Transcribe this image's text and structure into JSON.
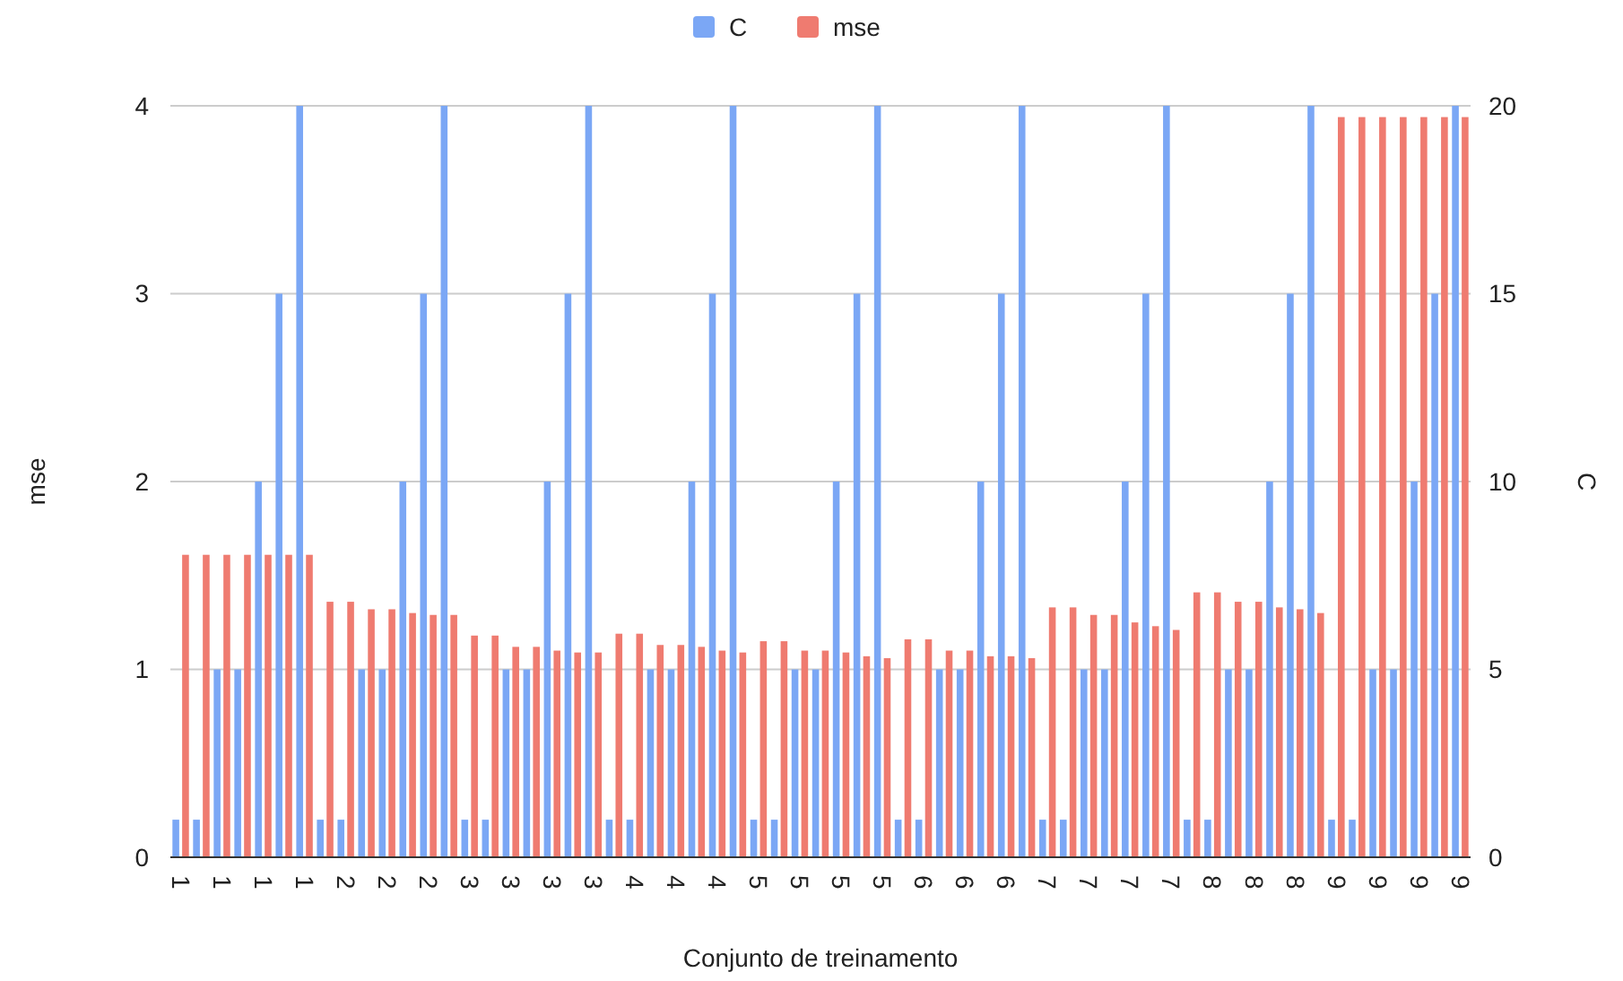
{
  "chart_data": {
    "type": "bar",
    "xlabel": "Conjunto de treinamento",
    "ylabel": "mse",
    "y2label": "C",
    "categories": [
      "1",
      null,
      "1",
      null,
      "1",
      null,
      "1",
      null,
      "2",
      null,
      "2",
      null,
      "2",
      null,
      "3",
      null,
      "3",
      null,
      "3",
      null,
      "3",
      null,
      "4",
      null,
      "4",
      null,
      "4",
      null,
      "5",
      null,
      "5",
      null,
      "5",
      null,
      "5",
      null,
      "6",
      null,
      "6",
      null,
      "6",
      null,
      "7",
      null,
      "7",
      null,
      "7",
      null,
      "7",
      null,
      "8",
      null,
      "8",
      null,
      "8",
      null,
      "9",
      null,
      "9",
      null,
      "9",
      null,
      "9"
    ],
    "series": [
      {
        "name": "C",
        "color": "#7ba7f5",
        "axis": "y2",
        "values": [
          1,
          1,
          5,
          5,
          10,
          15,
          20,
          1,
          1,
          5,
          5,
          10,
          15,
          20,
          1,
          1,
          5,
          5,
          10,
          15,
          20,
          1,
          1,
          5,
          5,
          10,
          15,
          20,
          1,
          1,
          5,
          5,
          10,
          15,
          20,
          1,
          1,
          5,
          5,
          10,
          15,
          20,
          1,
          1,
          5,
          5,
          10,
          15,
          20,
          1,
          1,
          5,
          5,
          10,
          15,
          20,
          1,
          1,
          5,
          5,
          10,
          15,
          20
        ]
      },
      {
        "name": "mse",
        "color": "#ef7b70",
        "values": [
          1.61,
          1.61,
          1.61,
          1.61,
          1.61,
          1.61,
          1.61,
          1.36,
          1.36,
          1.32,
          1.32,
          1.3,
          1.29,
          1.29,
          1.18,
          1.18,
          1.12,
          1.12,
          1.1,
          1.09,
          1.09,
          1.19,
          1.19,
          1.13,
          1.13,
          1.12,
          1.1,
          1.09,
          1.15,
          1.15,
          1.1,
          1.1,
          1.09,
          1.07,
          1.06,
          1.16,
          1.16,
          1.1,
          1.1,
          1.07,
          1.07,
          1.06,
          1.33,
          1.33,
          1.29,
          1.29,
          1.25,
          1.23,
          1.21,
          1.41,
          1.41,
          1.36,
          1.36,
          1.33,
          1.32,
          1.3,
          3.94,
          3.94,
          3.94,
          3.94,
          3.94,
          3.94,
          3.94
        ]
      }
    ],
    "ylim": [
      0,
      4
    ],
    "yticks": [
      0,
      1,
      2,
      3,
      4
    ],
    "y2lim": [
      0,
      20
    ],
    "y2ticks": [
      0,
      5,
      10,
      15,
      20
    ],
    "grid": "y",
    "legend": "top"
  }
}
